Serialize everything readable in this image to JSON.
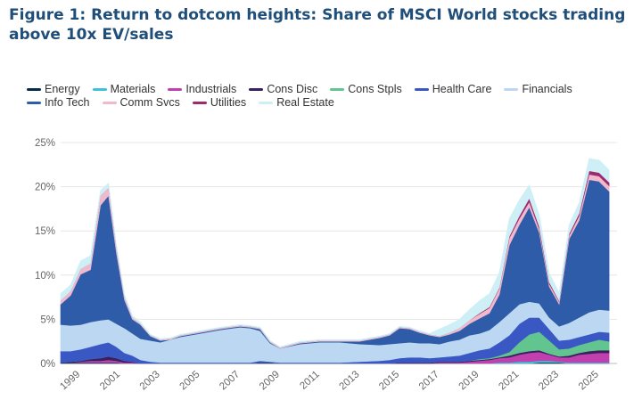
{
  "figure": {
    "title_line1": "Figure 1: Return to dotcom heights: Share of MSCI World stocks trading",
    "title_line2": "above 10x EV/sales"
  },
  "chart_data": {
    "type": "area",
    "stacked": true,
    "title": "Return to dotcom heights: Share of MSCI World stocks trading above 10x EV/sales",
    "xlabel": "",
    "ylabel": "",
    "xlim": [
      1998,
      2025.9
    ],
    "ylim": [
      0,
      25
    ],
    "y_format": "percent",
    "y_ticks": [
      0,
      5,
      10,
      15,
      20,
      25
    ],
    "y_tick_labels": [
      "0%",
      "5%",
      "10%",
      "15%",
      "20%",
      "25%"
    ],
    "x_ticks": [
      1999,
      2001,
      2003,
      2005,
      2007,
      2009,
      2011,
      2013,
      2015,
      2017,
      2019,
      2021,
      2023,
      2025
    ],
    "x_tick_labels": [
      "1999",
      "2001",
      "2003",
      "2005",
      "2007",
      "2009",
      "2011",
      "2013",
      "2015",
      "2017",
      "2019",
      "2021",
      "2023",
      "2025"
    ],
    "grid": "horizontal",
    "legend_position": "top",
    "x": [
      1998.0,
      1998.5,
      1999.0,
      1999.5,
      2000.0,
      2000.4,
      2000.8,
      2001.2,
      2001.6,
      2002.0,
      2002.5,
      2003.0,
      2003.5,
      2004.0,
      2005.0,
      2006.0,
      2007.0,
      2007.5,
      2008.0,
      2008.5,
      2009.0,
      2010.0,
      2011.0,
      2012.0,
      2013.0,
      2014.0,
      2014.5,
      2015.0,
      2015.5,
      2016.0,
      2016.5,
      2017.0,
      2017.5,
      2018.0,
      2018.5,
      2019.0,
      2019.5,
      2020.0,
      2020.5,
      2021.0,
      2021.5,
      2022.0,
      2022.5,
      2023.0,
      2023.5,
      2024.0,
      2024.5,
      2025.0,
      2025.5
    ],
    "series": [
      {
        "name": "Energy",
        "color": "#0b2a4a",
        "values": [
          0.1,
          0.1,
          0.1,
          0.1,
          0.1,
          0.1,
          0.1,
          0.0,
          0.0,
          0.0,
          0.0,
          0.0,
          0.0,
          0.0,
          0.0,
          0.0,
          0.0,
          0.0,
          0.1,
          0.1,
          0.0,
          0.0,
          0.0,
          0.0,
          0.0,
          0.0,
          0.0,
          0.0,
          0.0,
          0.0,
          0.0,
          0.0,
          0.0,
          0.0,
          0.0,
          0.0,
          0.0,
          0.0,
          0.0,
          0.0,
          0.0,
          0.1,
          0.1,
          0.1,
          0.0,
          0.0,
          0.0,
          0.0,
          0.0
        ]
      },
      {
        "name": "Materials",
        "color": "#3fc1d6",
        "values": [
          0.0,
          0.0,
          0.0,
          0.0,
          0.0,
          0.0,
          0.0,
          0.0,
          0.0,
          0.0,
          0.0,
          0.0,
          0.0,
          0.0,
          0.0,
          0.0,
          0.0,
          0.0,
          0.0,
          0.0,
          0.0,
          0.0,
          0.0,
          0.0,
          0.0,
          0.0,
          0.0,
          0.0,
          0.0,
          0.0,
          0.0,
          0.0,
          0.0,
          0.0,
          0.0,
          0.0,
          0.0,
          0.1,
          0.1,
          0.2,
          0.2,
          0.2,
          0.2,
          0.1,
          0.1,
          0.1,
          0.1,
          0.1,
          0.1
        ]
      },
      {
        "name": "Industrials",
        "color": "#c040b0",
        "values": [
          0.0,
          0.0,
          0.1,
          0.2,
          0.2,
          0.3,
          0.2,
          0.1,
          0.1,
          0.0,
          0.0,
          0.0,
          0.0,
          0.0,
          0.0,
          0.0,
          0.0,
          0.0,
          0.0,
          0.0,
          0.0,
          0.0,
          0.0,
          0.0,
          0.0,
          0.0,
          0.0,
          0.0,
          0.0,
          0.0,
          0.0,
          0.1,
          0.1,
          0.1,
          0.2,
          0.3,
          0.4,
          0.5,
          0.6,
          0.8,
          1.0,
          1.0,
          0.7,
          0.5,
          0.6,
          0.9,
          1.0,
          1.1,
          1.1
        ]
      },
      {
        "name": "Cons Disc",
        "color": "#3b1f5e",
        "values": [
          0.0,
          0.1,
          0.1,
          0.2,
          0.3,
          0.4,
          0.3,
          0.2,
          0.1,
          0.0,
          0.0,
          0.0,
          0.0,
          0.0,
          0.0,
          0.0,
          0.0,
          0.0,
          0.0,
          0.0,
          0.0,
          0.0,
          0.0,
          0.0,
          0.0,
          0.0,
          0.0,
          0.1,
          0.1,
          0.1,
          0.1,
          0.1,
          0.1,
          0.1,
          0.1,
          0.1,
          0.1,
          0.1,
          0.2,
          0.2,
          0.2,
          0.2,
          0.1,
          0.1,
          0.2,
          0.2,
          0.3,
          0.3,
          0.3
        ]
      },
      {
        "name": "Cons Stpls",
        "color": "#62c48e",
        "values": [
          0.0,
          0.0,
          0.0,
          0.0,
          0.0,
          0.0,
          0.0,
          0.0,
          0.0,
          0.0,
          0.0,
          0.0,
          0.0,
          0.0,
          0.0,
          0.0,
          0.0,
          0.0,
          0.0,
          0.0,
          0.0,
          0.0,
          0.0,
          0.0,
          0.0,
          0.0,
          0.0,
          0.0,
          0.0,
          0.0,
          0.0,
          0.0,
          0.0,
          0.0,
          0.0,
          0.1,
          0.1,
          0.2,
          0.4,
          1.2,
          1.9,
          2.1,
          1.5,
          0.8,
          0.8,
          0.9,
          1.0,
          1.2,
          1.0
        ]
      },
      {
        "name": "Health Care",
        "color": "#3a58c4",
        "values": [
          1.3,
          1.2,
          1.3,
          1.4,
          1.6,
          1.6,
          1.3,
          0.9,
          0.7,
          0.4,
          0.2,
          0.1,
          0.1,
          0.1,
          0.1,
          0.1,
          0.1,
          0.1,
          0.2,
          0.1,
          0.1,
          0.1,
          0.1,
          0.1,
          0.2,
          0.3,
          0.4,
          0.5,
          0.6,
          0.6,
          0.5,
          0.5,
          0.6,
          0.7,
          0.9,
          1.0,
          1.1,
          1.5,
          1.9,
          2.1,
          1.9,
          1.6,
          1.3,
          1.0,
          1.0,
          0.9,
          0.9,
          0.9,
          1.0
        ]
      },
      {
        "name": "Financials",
        "color": "#bcd7f1",
        "values": [
          3.0,
          2.9,
          2.8,
          2.8,
          2.7,
          2.6,
          2.6,
          2.8,
          2.5,
          2.4,
          2.4,
          2.3,
          2.6,
          2.9,
          3.3,
          3.7,
          4.0,
          3.9,
          3.4,
          2.1,
          1.6,
          2.1,
          2.3,
          2.3,
          2.0,
          1.8,
          1.8,
          1.7,
          1.7,
          1.6,
          1.7,
          1.5,
          1.7,
          1.8,
          2.0,
          1.9,
          2.1,
          2.3,
          2.5,
          2.2,
          1.8,
          1.6,
          1.3,
          1.6,
          1.9,
          2.2,
          2.5,
          2.5,
          2.5
        ]
      },
      {
        "name": "Info Tech",
        "color": "#2e5ca8",
        "values": [
          2.3,
          3.4,
          5.7,
          5.9,
          13.0,
          14.0,
          8.0,
          3.2,
          1.6,
          1.6,
          0.5,
          0.2,
          0.0,
          0.1,
          0.1,
          0.1,
          0.1,
          0.1,
          0.2,
          0.1,
          0.0,
          0.1,
          0.1,
          0.1,
          0.3,
          0.8,
          1.0,
          1.7,
          1.5,
          1.2,
          0.9,
          0.8,
          0.8,
          1.0,
          1.3,
          1.7,
          1.9,
          3.1,
          7.7,
          9.0,
          10.7,
          8.0,
          3.5,
          2.5,
          9.5,
          11.0,
          15.0,
          14.5,
          13.5
        ]
      },
      {
        "name": "Comm Svcs",
        "color": "#f2b8cc",
        "values": [
          0.4,
          0.5,
          0.6,
          0.7,
          1.1,
          0.9,
          0.6,
          0.3,
          0.2,
          0.1,
          0.1,
          0.1,
          0.1,
          0.1,
          0.1,
          0.1,
          0.1,
          0.1,
          0.1,
          0.1,
          0.1,
          0.1,
          0.1,
          0.1,
          0.1,
          0.1,
          0.1,
          0.1,
          0.1,
          0.1,
          0.1,
          0.1,
          0.2,
          0.3,
          0.4,
          0.5,
          0.6,
          0.7,
          0.8,
          0.7,
          0.6,
          0.4,
          0.3,
          0.3,
          0.4,
          0.5,
          0.6,
          0.6,
          0.6
        ]
      },
      {
        "name": "Utilities",
        "color": "#9c2a6e",
        "values": [
          0.0,
          0.0,
          0.0,
          0.0,
          0.0,
          0.0,
          0.0,
          0.0,
          0.0,
          0.0,
          0.0,
          0.0,
          0.0,
          0.0,
          0.0,
          0.0,
          0.0,
          0.0,
          0.0,
          0.0,
          0.0,
          0.0,
          0.0,
          0.0,
          0.0,
          0.0,
          0.0,
          0.0,
          0.0,
          0.0,
          0.0,
          0.0,
          0.0,
          0.0,
          0.0,
          0.1,
          0.1,
          0.1,
          0.2,
          0.3,
          0.4,
          0.3,
          0.2,
          0.1,
          0.2,
          0.3,
          0.4,
          0.4,
          0.4
        ]
      },
      {
        "name": "Real Estate",
        "color": "#cdeff5",
        "values": [
          0.8,
          0.7,
          0.9,
          0.9,
          0.6,
          0.5,
          0.3,
          0.3,
          0.2,
          0.2,
          0.1,
          0.1,
          0.1,
          0.1,
          0.1,
          0.1,
          0.1,
          0.1,
          0.1,
          0.1,
          0.1,
          0.1,
          0.1,
          0.1,
          0.1,
          0.1,
          0.1,
          0.1,
          0.1,
          0.1,
          0.1,
          0.8,
          0.9,
          1.0,
          1.2,
          1.4,
          1.5,
          1.7,
          2.0,
          1.8,
          1.5,
          1.3,
          1.0,
          0.9,
          1.0,
          1.2,
          1.4,
          1.4,
          1.4
        ]
      }
    ]
  }
}
